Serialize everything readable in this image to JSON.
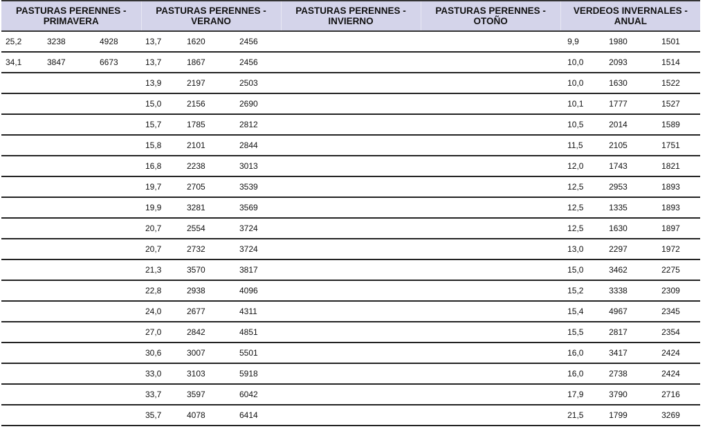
{
  "headers": [
    {
      "line1": "PASTURAS PERENNES -",
      "line2": "PRIMAVERA"
    },
    {
      "line1": "PASTURAS PERENNES -",
      "line2": "VERANO"
    },
    {
      "line1": "PASTURAS PERENNES -",
      "line2": "INVIERNO"
    },
    {
      "line1": "PASTURAS PERENNES -",
      "line2": "OTOÑO"
    },
    {
      "line1": "VERDEOS INVERNALES -",
      "line2": "ANUAL"
    }
  ],
  "rows": [
    [
      "25,2",
      "3238",
      "4928",
      "13,7",
      "1620",
      "2456",
      "",
      "",
      "",
      "",
      "",
      "",
      "9,9",
      "1980",
      "1501"
    ],
    [
      "34,1",
      "3847",
      "6673",
      "13,7",
      "1867",
      "2456",
      "",
      "",
      "",
      "",
      "",
      "",
      "10,0",
      "2093",
      "1514"
    ],
    [
      "",
      "",
      "",
      "13,9",
      "2197",
      "2503",
      "",
      "",
      "",
      "",
      "",
      "",
      "10,0",
      "1630",
      "1522"
    ],
    [
      "",
      "",
      "",
      "15,0",
      "2156",
      "2690",
      "",
      "",
      "",
      "",
      "",
      "",
      "10,1",
      "1777",
      "1527"
    ],
    [
      "",
      "",
      "",
      "15,7",
      "1785",
      "2812",
      "",
      "",
      "",
      "",
      "",
      "",
      "10,5",
      "2014",
      "1589"
    ],
    [
      "",
      "",
      "",
      "15,8",
      "2101",
      "2844",
      "",
      "",
      "",
      "",
      "",
      "",
      "11,5",
      "2105",
      "1751"
    ],
    [
      "",
      "",
      "",
      "16,8",
      "2238",
      "3013",
      "",
      "",
      "",
      "",
      "",
      "",
      "12,0",
      "1743",
      "1821"
    ],
    [
      "",
      "",
      "",
      "19,7",
      "2705",
      "3539",
      "",
      "",
      "",
      "",
      "",
      "",
      "12,5",
      "2953",
      "1893"
    ],
    [
      "",
      "",
      "",
      "19,9",
      "3281",
      "3569",
      "",
      "",
      "",
      "",
      "",
      "",
      "12,5",
      "1335",
      "1893"
    ],
    [
      "",
      "",
      "",
      "20,7",
      "2554",
      "3724",
      "",
      "",
      "",
      "",
      "",
      "",
      "12,5",
      "1630",
      "1897"
    ],
    [
      "",
      "",
      "",
      "20,7",
      "2732",
      "3724",
      "",
      "",
      "",
      "",
      "",
      "",
      "13,0",
      "2297",
      "1972"
    ],
    [
      "",
      "",
      "",
      "21,3",
      "3570",
      "3817",
      "",
      "",
      "",
      "",
      "",
      "",
      "15,0",
      "3462",
      "2275"
    ],
    [
      "",
      "",
      "",
      "22,8",
      "2938",
      "4096",
      "",
      "",
      "",
      "",
      "",
      "",
      "15,2",
      "3338",
      "2309"
    ],
    [
      "",
      "",
      "",
      "24,0",
      "2677",
      "4311",
      "",
      "",
      "",
      "",
      "",
      "",
      "15,4",
      "4967",
      "2345"
    ],
    [
      "",
      "",
      "",
      "27,0",
      "2842",
      "4851",
      "",
      "",
      "",
      "",
      "",
      "",
      "15,5",
      "2817",
      "2354"
    ],
    [
      "",
      "",
      "",
      "30,6",
      "3007",
      "5501",
      "",
      "",
      "",
      "",
      "",
      "",
      "16,0",
      "3417",
      "2424"
    ],
    [
      "",
      "",
      "",
      "33,0",
      "3103",
      "5918",
      "",
      "",
      "",
      "",
      "",
      "",
      "16,0",
      "2738",
      "2424"
    ],
    [
      "",
      "",
      "",
      "33,7",
      "3597",
      "6042",
      "",
      "",
      "",
      "",
      "",
      "",
      "17,9",
      "3790",
      "2716"
    ],
    [
      "",
      "",
      "",
      "35,7",
      "4078",
      "6414",
      "",
      "",
      "",
      "",
      "",
      "",
      "21,5",
      "1799",
      "3269"
    ]
  ]
}
